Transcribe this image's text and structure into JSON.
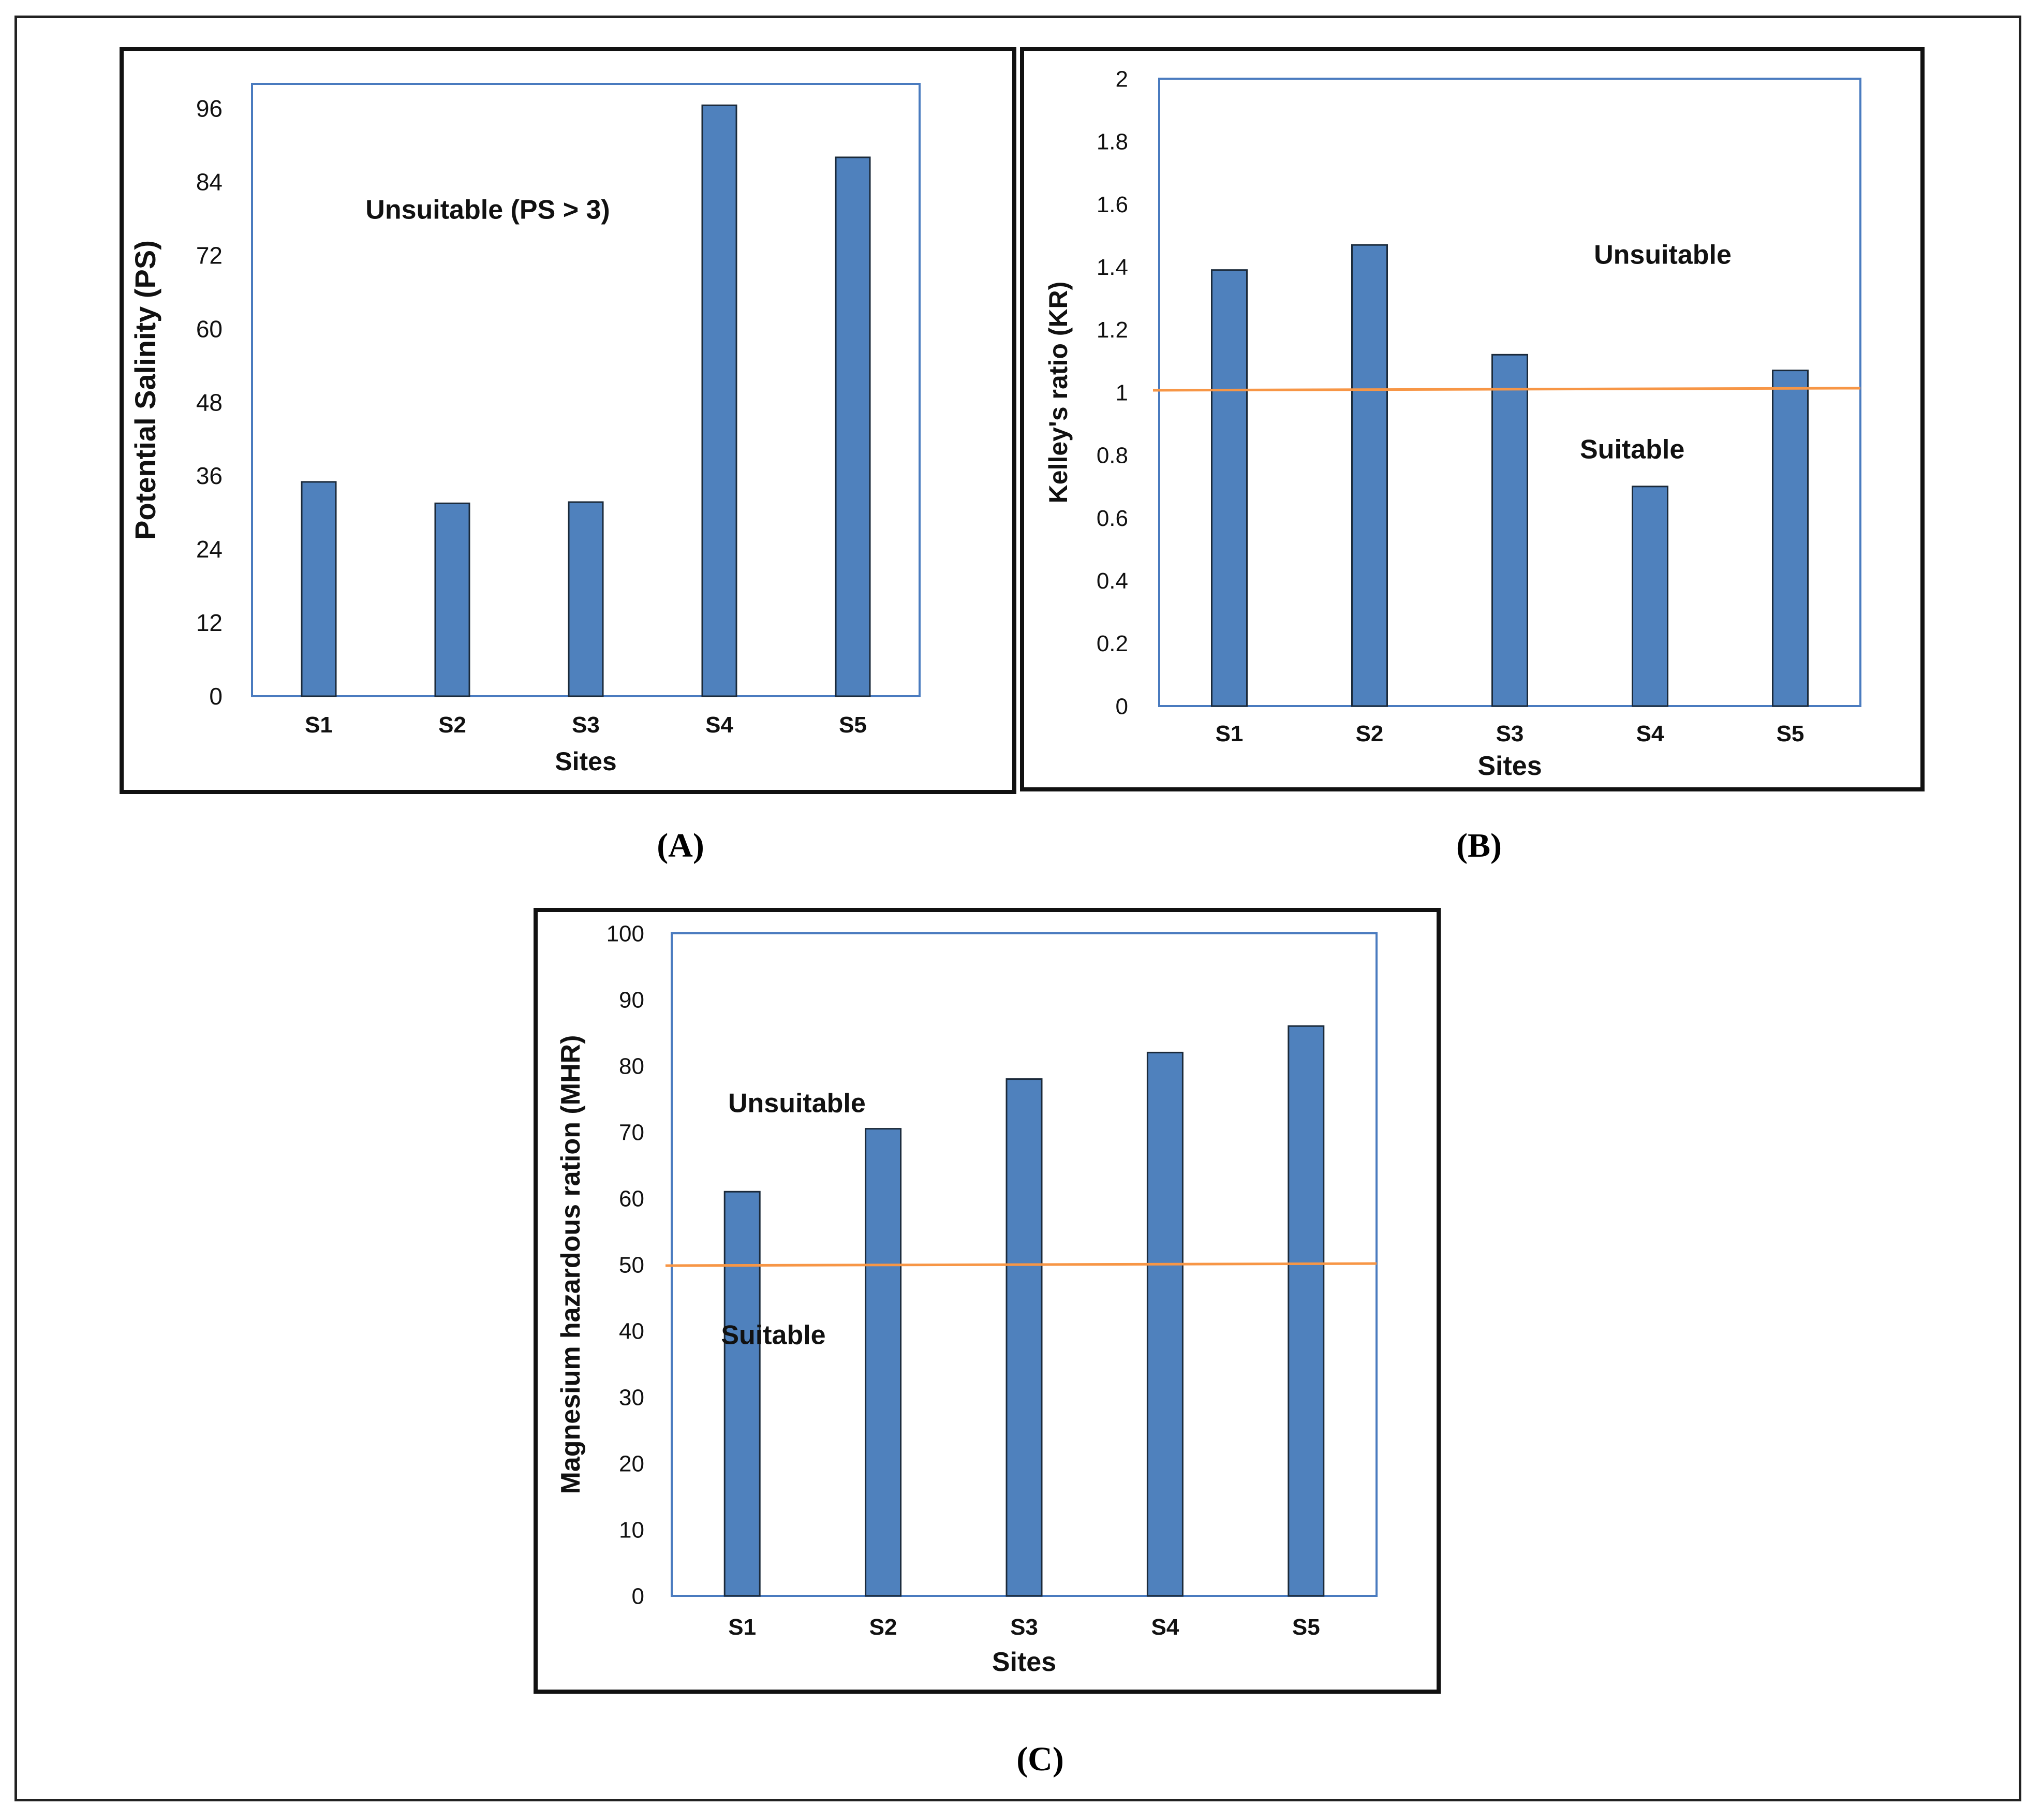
{
  "figure": {
    "panel_captions": [
      "(A)",
      "(B)",
      "(C)"
    ]
  },
  "colors": {
    "bar_fill": "#4f81bd",
    "bar_stroke": "#1b2a3a",
    "plot_border": "#4a7bbf",
    "threshold_line": "#f79646",
    "frame": "#111111"
  },
  "chart_data": [
    {
      "id": "A",
      "type": "bar",
      "title": "",
      "categories": [
        "S1",
        "S2",
        "S3",
        "S4",
        "S5"
      ],
      "values": [
        35,
        31.5,
        31.7,
        96.5,
        88
      ],
      "xlabel": "Sites",
      "ylabel": "Potential Salinity (PS)",
      "ylim": [
        0,
        100
      ],
      "yticks": [
        0,
        12,
        24,
        36,
        48,
        60,
        72,
        84,
        96
      ],
      "tick_labels": [
        "0",
        "12",
        "24",
        "36",
        "48",
        "60",
        "72",
        "84",
        "96"
      ],
      "threshold": null,
      "annotations": [
        {
          "text": "Unsuitable (PS > 3)",
          "x_category_pos": 0.85,
          "y": 78
        }
      ]
    },
    {
      "id": "B",
      "type": "bar",
      "title": "",
      "categories": [
        "S1",
        "S2",
        "S3",
        "S4",
        "S5"
      ],
      "values": [
        1.39,
        1.47,
        1.12,
        0.7,
        1.07
      ],
      "xlabel": "Sites",
      "ylabel": "Kelley's ratio (KR)",
      "ylim": [
        0,
        2
      ],
      "yticks": [
        0,
        0.2,
        0.4,
        0.6,
        0.8,
        1,
        1.2,
        1.4,
        1.6,
        1.8,
        2
      ],
      "tick_labels": [
        "0",
        "0.2",
        "0.4",
        "0.6",
        "0.8",
        "1",
        "1.2",
        "1.4",
        "1.6",
        "1.8",
        "2"
      ],
      "threshold": 1.01,
      "annotations": [
        {
          "text": "Unsuitable",
          "x_category_pos": 3.1,
          "y": 1.41
        },
        {
          "text": "Suitable",
          "x_category_pos": 3.0,
          "y": 0.79
        }
      ]
    },
    {
      "id": "C",
      "type": "bar",
      "title": "",
      "categories": [
        "S1",
        "S2",
        "S3",
        "S4",
        "S5"
      ],
      "values": [
        61,
        70.5,
        78,
        82,
        86
      ],
      "xlabel": "Sites",
      "ylabel": "Magnesium hazardous ration (MHR)",
      "ylim": [
        0,
        100
      ],
      "yticks": [
        0,
        10,
        20,
        30,
        40,
        50,
        60,
        70,
        80,
        90,
        100
      ],
      "tick_labels": [
        "0",
        "10",
        "20",
        "30",
        "40",
        "50",
        "60",
        "70",
        "80",
        "90",
        "100"
      ],
      "threshold": 50,
      "annotations": [
        {
          "text": "Unsuitable",
          "x_category_pos": 0.4,
          "y": 73
        },
        {
          "text": "Suitable",
          "x_category_pos": 0.35,
          "y": 38
        }
      ]
    }
  ]
}
